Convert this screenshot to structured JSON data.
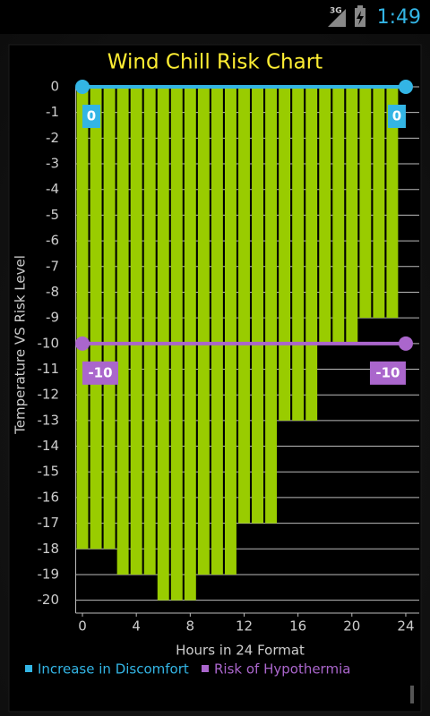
{
  "status_bar": {
    "network": "3G",
    "time": "1:49"
  },
  "chart_data": {
    "type": "bar",
    "title": "Wind Chill Risk Chart",
    "x_label": "Hours in 24 Format",
    "y_label": "Temperature VS Risk Level",
    "xlim": [
      -0.5,
      25
    ],
    "xticks": [
      0,
      4,
      8,
      12,
      16,
      20,
      24
    ],
    "ylim": [
      -20.5,
      0
    ],
    "yticks": [
      0,
      -1,
      -2,
      -3,
      -4,
      -5,
      -6,
      -7,
      -8,
      -9,
      -10,
      -11,
      -12,
      -13,
      -14,
      -15,
      -16,
      -17,
      -18,
      -19,
      -20
    ],
    "grid": true,
    "x": [
      0,
      1,
      2,
      3,
      4,
      5,
      6,
      7,
      8,
      9,
      10,
      11,
      12,
      13,
      14,
      15,
      16,
      17,
      18,
      19,
      20,
      21,
      22,
      23
    ],
    "values": [
      -18,
      -18,
      -18,
      -19,
      -19,
      -19,
      -20,
      -20,
      -20,
      -19,
      -19,
      -19,
      -17,
      -17,
      -17,
      -13,
      -13,
      -13,
      -10,
      -10,
      -10,
      -9,
      -9,
      -9
    ],
    "color": "#99cc00",
    "lines": [
      {
        "name": "Increase in Discomfort",
        "color": "#33b5e5",
        "x": [
          0,
          24
        ],
        "values": [
          0,
          0
        ]
      },
      {
        "name": "Risk of Hypothermia",
        "color": "#aa66cc",
        "x": [
          0,
          24
        ],
        "values": [
          -10,
          -10
        ]
      }
    ]
  }
}
